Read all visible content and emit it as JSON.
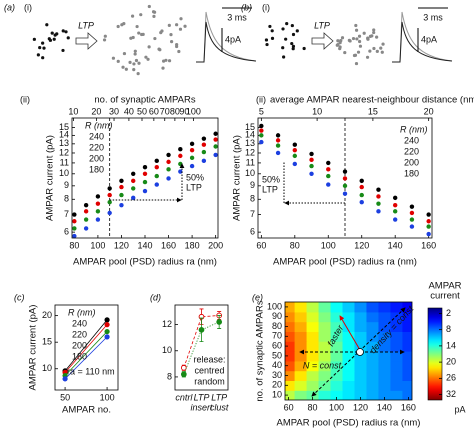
{
  "schematics": [
    {
      "panel": "(a)",
      "part": "(i)",
      "arrow": "LTP",
      "time_scale": "3 ms",
      "current_scale": "4pA"
    },
    {
      "panel": "(b)",
      "part": "(i)",
      "arrow": "LTP",
      "time_scale": "3 ms",
      "current_scale": "4pA"
    }
  ],
  "chart_data": [
    {
      "type": "scatter",
      "panel": "(ii)",
      "x2label": "no. of synaptic AMPARs",
      "xlabel": "AMPAR pool (PSD) radius ra (nm)",
      "ylabel": "AMPAR current (pA)",
      "x": [
        80,
        90,
        100,
        110,
        120,
        130,
        140,
        150,
        160,
        170,
        180,
        190,
        200
      ],
      "xlim": [
        78,
        202
      ],
      "xticks": [
        80,
        100,
        120,
        140,
        160,
        180,
        200
      ],
      "x2scale": "sqrt",
      "x2lim": [
        9.5,
        130
      ],
      "x2ticks": [
        10,
        20,
        30,
        40,
        50,
        60,
        70,
        80,
        90,
        100
      ],
      "yscale": "log",
      "ylim": [
        5.7,
        16.3
      ],
      "yticks": [
        6,
        7,
        8,
        9,
        10,
        11,
        12,
        13,
        14,
        15
      ],
      "vline": 110,
      "legend_title": "R (nm)",
      "legend": "upper left",
      "annotation": [
        "50%",
        "LTP"
      ],
      "series": [
        {
          "name": "240",
          "color": "#000000",
          "values": [
            7.0,
            7.6,
            8.2,
            8.8,
            9.4,
            10.0,
            10.6,
            11.2,
            11.8,
            12.4,
            13.0,
            13.6,
            14.2
          ]
        },
        {
          "name": "220",
          "color": "#e00000",
          "values": [
            6.6,
            7.2,
            7.7,
            8.3,
            8.9,
            9.4,
            10.0,
            10.6,
            11.1,
            11.7,
            12.3,
            12.9,
            13.5
          ]
        },
        {
          "name": "200",
          "color": "#178a17",
          "values": [
            6.2,
            6.7,
            7.2,
            7.8,
            8.3,
            8.8,
            9.3,
            9.8,
            10.4,
            10.9,
            11.5,
            12.1,
            12.7
          ]
        },
        {
          "name": "180",
          "color": "#1c3fe0",
          "values": [
            5.8,
            6.2,
            6.7,
            7.1,
            7.6,
            8.1,
            8.6,
            9.1,
            9.6,
            10.2,
            10.7,
            11.2,
            11.8
          ]
        }
      ]
    },
    {
      "type": "scatter",
      "panel": "(ii)",
      "x2label": "average AMPAR nearest-neighbour distance (nm)",
      "xlabel": "AMPAR pool (PSD) radius ra (nm)",
      "ylabel": "AMPAR current (pA)",
      "x": [
        60,
        70,
        80,
        90,
        100,
        110,
        120,
        130,
        140,
        150,
        160
      ],
      "xlim": [
        58,
        162
      ],
      "xticks": [
        60,
        80,
        100,
        120,
        140,
        160
      ],
      "x2scale": "linear",
      "x2lim": [
        4.7,
        20.3
      ],
      "x2ticks": [
        5,
        10,
        15,
        20
      ],
      "yscale": "log",
      "ylim": [
        5.7,
        16.3
      ],
      "yticks": [
        6,
        7,
        8,
        9,
        10,
        11,
        12,
        13,
        14,
        15
      ],
      "vline": 110,
      "legend_title": "R (nm)",
      "legend": "upper right",
      "annotation": [
        "50%",
        "LTP"
      ],
      "series": [
        {
          "name": "240",
          "color": "#000000",
          "values": [
            15.2,
            14.0,
            12.9,
            11.9,
            11.0,
            10.2,
            9.4,
            8.7,
            8.1,
            7.5,
            7.0
          ]
        },
        {
          "name": "220",
          "color": "#e00000",
          "values": [
            14.6,
            13.4,
            12.3,
            11.3,
            10.4,
            9.6,
            8.9,
            8.2,
            7.6,
            7.1,
            6.6
          ]
        },
        {
          "name": "200",
          "color": "#178a17",
          "values": [
            14.0,
            12.8,
            11.7,
            10.7,
            9.8,
            9.0,
            8.3,
            7.7,
            7.2,
            6.7,
            6.3
          ]
        },
        {
          "name": "180",
          "color": "#1c3fe0",
          "values": [
            13.2,
            12.0,
            10.9,
            10.0,
            9.1,
            8.4,
            7.8,
            7.2,
            6.7,
            6.3,
            5.9
          ]
        }
      ]
    },
    {
      "type": "line",
      "panel": "(c)",
      "xlabel": "AMPAR no.",
      "ylabel": "AMPAR current (pA)",
      "x": [
        50,
        100
      ],
      "xlim": [
        38,
        113
      ],
      "xticks": [
        50,
        100
      ],
      "yscale": "linear",
      "ylim": [
        6,
        22
      ],
      "yticks": [
        10,
        15,
        20
      ],
      "legend_title": "R (nm)",
      "legend": "upper left",
      "annotation": "ra = 110 nm",
      "series": [
        {
          "name": "240",
          "color": "#000000",
          "values": [
            9.6,
            19.2
          ]
        },
        {
          "name": "220",
          "color": "#e00000",
          "values": [
            9.3,
            18.3
          ]
        },
        {
          "name": "200",
          "color": "#178a17",
          "values": [
            8.7,
            17.0
          ]
        },
        {
          "name": "180",
          "color": "#1c3fe0",
          "values": [
            8.1,
            16.0
          ]
        }
      ]
    },
    {
      "type": "point",
      "panel": "(d)",
      "categories": [
        [
          "cntrl"
        ],
        [
          "LTP",
          "insert"
        ],
        [
          "LTP",
          "clust"
        ]
      ],
      "yscale": "linear",
      "ylim": [
        7,
        13.5
      ],
      "yticks": [
        8,
        10,
        12
      ],
      "legend_title": "release:",
      "legend": "lower right",
      "series": [
        {
          "name": "centred",
          "color": "#e00000",
          "values": [
            8.7,
            12.6,
            12.7
          ],
          "errors": [
            0.2,
            0.6,
            0.3
          ]
        },
        {
          "name": "random",
          "color": "#178a17",
          "values": [
            8.2,
            11.6,
            12.2
          ],
          "errors": [
            0.2,
            0.9,
            0.5
          ]
        }
      ]
    },
    {
      "type": "heatmap",
      "panel": "(e)",
      "xlabel": "AMPAR pool (PSD) radius ra (nm)",
      "ylabel": "no. of synaptic AMPARs",
      "x": [
        60,
        70,
        80,
        90,
        100,
        110,
        120,
        130,
        140,
        150,
        160
      ],
      "y": [
        10,
        20,
        30,
        40,
        50,
        60,
        70,
        80,
        90,
        100
      ],
      "z": [
        [
          19,
          17,
          16,
          14,
          13,
          12,
          11,
          10,
          9,
          9,
          8
        ],
        [
          22,
          20,
          18,
          16,
          14,
          12,
          11,
          10,
          9,
          8,
          8
        ],
        [
          25,
          22,
          19,
          17,
          15,
          13,
          11,
          10,
          9,
          8,
          7
        ],
        [
          27,
          24,
          21,
          18,
          15,
          13,
          11,
          10,
          9,
          8,
          7
        ],
        [
          28,
          25,
          22,
          19,
          16,
          13,
          11,
          10,
          9,
          8,
          7
        ],
        [
          28,
          25,
          22,
          19,
          16,
          13,
          11,
          10,
          8,
          7,
          6
        ],
        [
          27,
          25,
          22,
          18,
          15,
          13,
          11,
          9,
          8,
          7,
          6
        ],
        [
          26,
          24,
          21,
          18,
          15,
          12,
          10,
          9,
          7,
          6,
          5
        ],
        [
          25,
          23,
          20,
          17,
          14,
          12,
          10,
          8,
          7,
          6,
          5
        ],
        [
          24,
          22,
          19,
          16,
          13,
          11,
          9,
          7,
          6,
          5,
          4
        ]
      ],
      "xlim": [
        57,
        163
      ],
      "xticks": [
        60,
        80,
        100,
        120,
        140,
        160
      ],
      "yscale": "linear",
      "ylim": [
        5,
        105
      ],
      "yticks": [
        10,
        20,
        30,
        40,
        50,
        60,
        70,
        80,
        90,
        100
      ],
      "colormap": "jet",
      "zlim": [
        0,
        34
      ],
      "zticks": [
        2,
        8,
        14,
        20,
        26,
        32
      ],
      "colorbar_label": [
        "AMPAR",
        "current"
      ],
      "colorbar_unit": "pA",
      "annotations": [
        "faster",
        "density = const",
        "N = const"
      ]
    }
  ]
}
